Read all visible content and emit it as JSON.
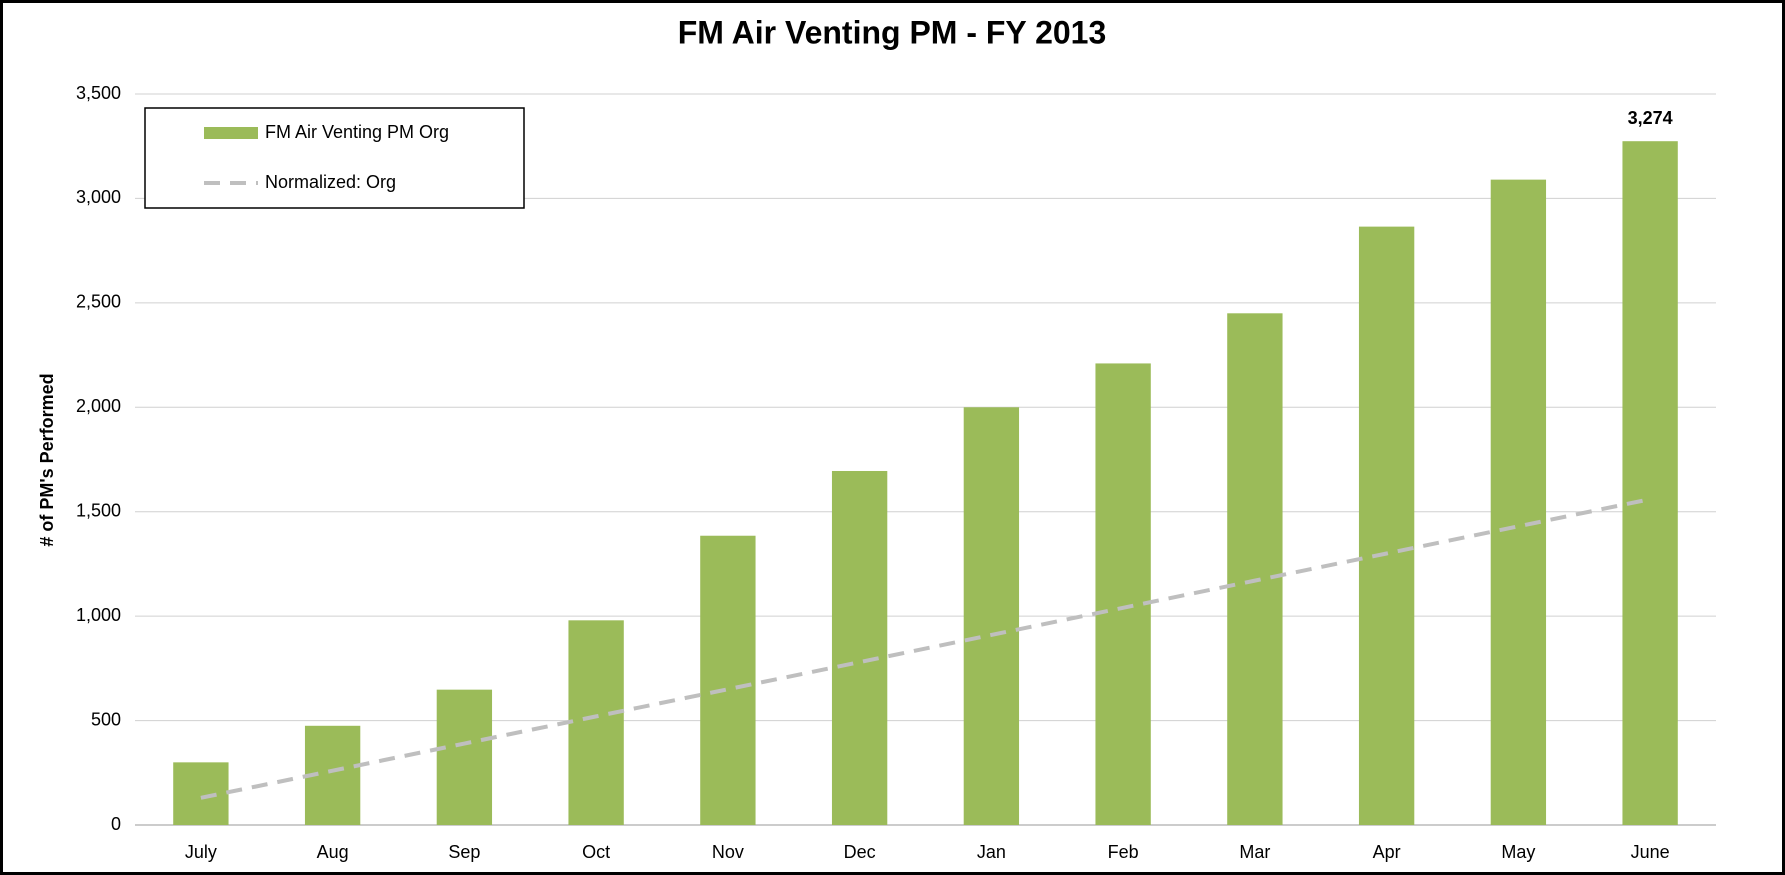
{
  "chart_data": {
    "type": "bar",
    "title": "FM Air Venting PM - FY 2013",
    "ylabel": "# of PM's Performed",
    "categories": [
      "July",
      "Aug",
      "Sep",
      "Oct",
      "Nov",
      "Dec",
      "Jan",
      "Feb",
      "Mar",
      "Apr",
      "May",
      "June"
    ],
    "series": [
      {
        "name": "FM Air Venting PM Org",
        "type": "bar",
        "color": "#9bbb59",
        "values": [
          300,
          475,
          648,
          980,
          1385,
          1695,
          2000,
          2210,
          2450,
          2865,
          3090,
          3274
        ],
        "value_labels": [
          null,
          null,
          null,
          null,
          null,
          null,
          null,
          null,
          null,
          null,
          null,
          "3,274"
        ]
      },
      {
        "name": "Normalized: Org",
        "type": "line",
        "color": "#bfbfbf",
        "dashed": true,
        "values": [
          130,
          260,
          390,
          520,
          650,
          780,
          910,
          1040,
          1170,
          1300,
          1430,
          1560
        ]
      }
    ],
    "ylim": [
      0,
      3500
    ],
    "yticks": [
      0,
      500,
      {
        "value": 1000,
        "label": "1,000"
      },
      {
        "value": 1500,
        "label": "1,500"
      },
      {
        "value": 2000,
        "label": "2,000"
      },
      {
        "value": 2500,
        "label": "2,500"
      },
      {
        "value": 3000,
        "label": "3,000"
      },
      {
        "value": 3500,
        "label": "3,500"
      }
    ],
    "grid": true,
    "legend": "top-left"
  }
}
